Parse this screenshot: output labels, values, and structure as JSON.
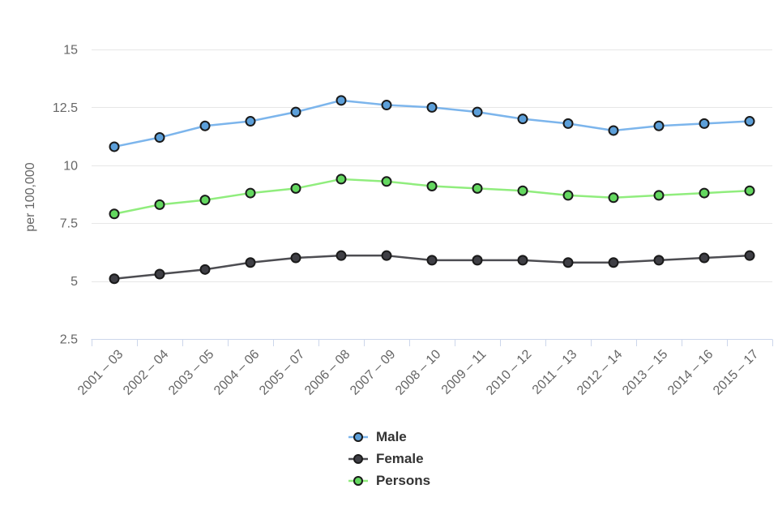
{
  "page": {
    "background": "#ffffff"
  },
  "chart_data": {
    "type": "line",
    "title": "",
    "xlabel": "",
    "ylabel": "per 100,000",
    "categories": [
      "2001 – 03",
      "2002 – 04",
      "2003 – 05",
      "2004 – 06",
      "2005 – 07",
      "2006 – 08",
      "2007 – 09",
      "2008 – 10",
      "2009 – 11",
      "2010 – 12",
      "2011 – 13",
      "2012 – 14",
      "2013 – 15",
      "2014 – 16",
      "2015 – 17"
    ],
    "ylim": [
      2.5,
      15
    ],
    "y_ticks": [
      2.5,
      5,
      7.5,
      10,
      12.5,
      15
    ],
    "grid": true,
    "legend_position": "bottom-center",
    "series": [
      {
        "name": "Male",
        "line_color": "#7cb5ec",
        "marker_color": "#5c9fd9",
        "values": [
          10.8,
          11.2,
          11.7,
          11.9,
          12.3,
          12.8,
          12.6,
          12.5,
          12.3,
          12.0,
          11.8,
          11.5,
          11.7,
          11.8,
          11.9
        ]
      },
      {
        "name": "Female",
        "line_color": "#4d4d52",
        "marker_color": "#3f3f45",
        "values": [
          5.1,
          5.3,
          5.5,
          5.8,
          6.0,
          6.1,
          6.1,
          5.9,
          5.9,
          5.9,
          5.8,
          5.8,
          5.9,
          6.0,
          6.1
        ]
      },
      {
        "name": "Persons",
        "line_color": "#90ed7d",
        "marker_color": "#63d75f",
        "values": [
          7.9,
          8.3,
          8.5,
          8.8,
          9.0,
          9.4,
          9.3,
          9.1,
          9.0,
          8.9,
          8.7,
          8.6,
          8.7,
          8.8,
          8.9
        ]
      }
    ]
  },
  "colors": {
    "axis_line": "#ccd6eb",
    "grid_line": "#e7e7e7",
    "tick_label": "#666666",
    "axis_title": "#666666",
    "legend_text": "#333333",
    "marker_stroke": "#1a1a1a"
  }
}
